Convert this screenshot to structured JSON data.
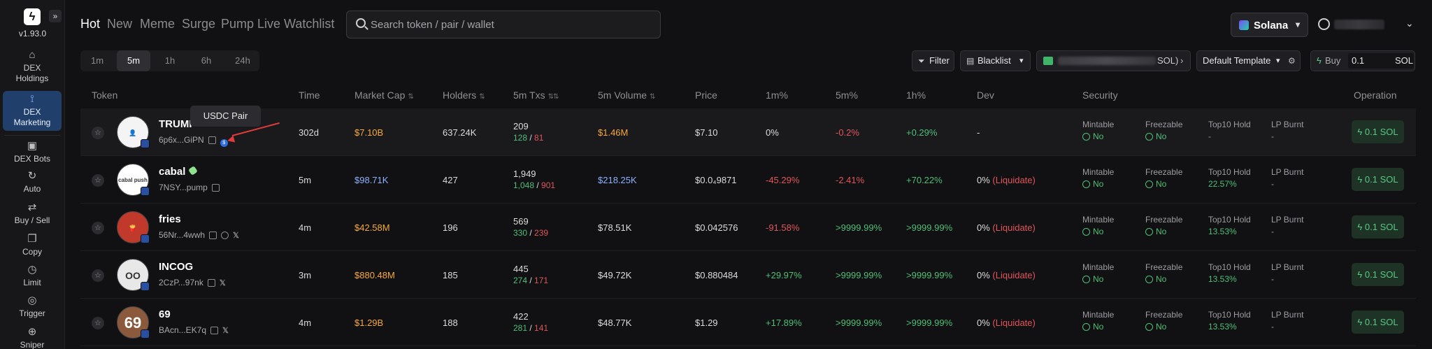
{
  "sidebar": {
    "version": "v1.93.0",
    "items": [
      {
        "label1": "DEX",
        "label2": "Holdings",
        "icon": "home-icon"
      },
      {
        "label1": "DEX",
        "label2": "Marketing",
        "icon": "chart-icon"
      },
      {
        "label1": "DEX Bots",
        "label2": "",
        "icon": "bot-icon"
      },
      {
        "label1": "Auto",
        "label2": "",
        "icon": "auto-icon"
      },
      {
        "label1": "Buy / Sell",
        "label2": "",
        "icon": "trade-icon"
      },
      {
        "label1": "Copy",
        "label2": "",
        "icon": "copy-icon"
      },
      {
        "label1": "Limit",
        "label2": "",
        "icon": "clock-icon"
      },
      {
        "label1": "Trigger",
        "label2": "",
        "icon": "trigger-icon"
      },
      {
        "label1": "Sniper",
        "label2": "",
        "icon": "sniper-icon"
      }
    ]
  },
  "tabs": [
    "Hot",
    "New",
    "Meme",
    "Surge",
    "Pump Live",
    "Watchlist"
  ],
  "search": {
    "placeholder": "Search token / pair / wallet"
  },
  "chain": {
    "label": "Solana",
    "accent": "#7b4bff"
  },
  "timeframes": [
    "1m",
    "5m",
    "1h",
    "6h",
    "24h"
  ],
  "controls": {
    "filter": "Filter",
    "blacklist": "Blacklist",
    "wallet_suffix": "SOL)",
    "template": "Default Template",
    "buy_label": "Buy",
    "buy_amount": "0.1",
    "buy_unit": "SOL"
  },
  "headers": {
    "token": "Token",
    "time": "Time",
    "market_cap": "Market Cap",
    "holders": "Holders",
    "txs": "5m Txs",
    "volume": "5m Volume",
    "price": "Price",
    "m1": "1m%",
    "m5": "5m%",
    "h1": "1h%",
    "dev": "Dev",
    "security": "Security",
    "operation": "Operation"
  },
  "tooltip": "USDC Pair",
  "security_labels": {
    "mintable": "Mintable",
    "freezable": "Freezable",
    "top10": "Top10 Hold",
    "lp": "LP Burnt"
  },
  "rows": [
    {
      "name": "TRUMP",
      "addr": "6p6x...GiPN",
      "time": "302d",
      "mcap": "$7.10B",
      "holders": "637.24K",
      "txs": "209",
      "buys": "128",
      "sells": "81",
      "volume": "$1.46M",
      "price": "$7.10",
      "m1": "0%",
      "m5": "-0.2%",
      "h1": "+0.29%",
      "dev": "-",
      "dev_note": "",
      "mint": "No",
      "freeze": "No",
      "top10": "-",
      "lp": "-",
      "buy": "0.1 SOL"
    },
    {
      "name": "cabal",
      "addr": "7NSY...pump",
      "time": "5m",
      "mcap": "$98.71K",
      "holders": "427",
      "txs": "1,949",
      "buys": "1,048",
      "sells": "901",
      "volume": "$218.25K",
      "price": "$0.0₄9871",
      "m1": "-45.29%",
      "m5": "-2.41%",
      "h1": "+70.22%",
      "dev": "0%",
      "dev_note": "(Liquidate)",
      "mint": "No",
      "freeze": "No",
      "top10": "22.57%",
      "lp": "-",
      "buy": "0.1 SOL"
    },
    {
      "name": "fries",
      "addr": "56Nr...4wwh",
      "time": "4m",
      "mcap": "$42.58M",
      "holders": "196",
      "txs": "569",
      "buys": "330",
      "sells": "239",
      "volume": "$78.51K",
      "price": "$0.042576",
      "m1": "-91.58%",
      "m5": ">9999.99%",
      "h1": ">9999.99%",
      "dev": "0%",
      "dev_note": "(Liquidate)",
      "mint": "No",
      "freeze": "No",
      "top10": "13.53%",
      "lp": "-",
      "buy": "0.1 SOL"
    },
    {
      "name": "INCOG",
      "addr": "2CzP...97nk",
      "time": "3m",
      "mcap": "$880.48M",
      "holders": "185",
      "txs": "445",
      "buys": "274",
      "sells": "171",
      "volume": "$49.72K",
      "price": "$0.880484",
      "m1": "+29.97%",
      "m5": ">9999.99%",
      "h1": ">9999.99%",
      "dev": "0%",
      "dev_note": "(Liquidate)",
      "mint": "No",
      "freeze": "No",
      "top10": "13.53%",
      "lp": "-",
      "buy": "0.1 SOL"
    },
    {
      "name": "69",
      "addr": "BAcn...EK7q",
      "time": "4m",
      "mcap": "$1.29B",
      "holders": "188",
      "txs": "422",
      "buys": "281",
      "sells": "141",
      "volume": "$48.77K",
      "price": "$1.29",
      "m1": "+17.89%",
      "m5": ">9999.99%",
      "h1": ">9999.99%",
      "dev": "0%",
      "dev_note": "(Liquidate)",
      "mint": "No",
      "freeze": "No",
      "top10": "13.53%",
      "lp": "-",
      "buy": "0.1 SOL"
    }
  ],
  "cabal_avatar_text": "cabal push",
  "incog_avatar_text": "OO",
  "avatar_69_text": "69"
}
